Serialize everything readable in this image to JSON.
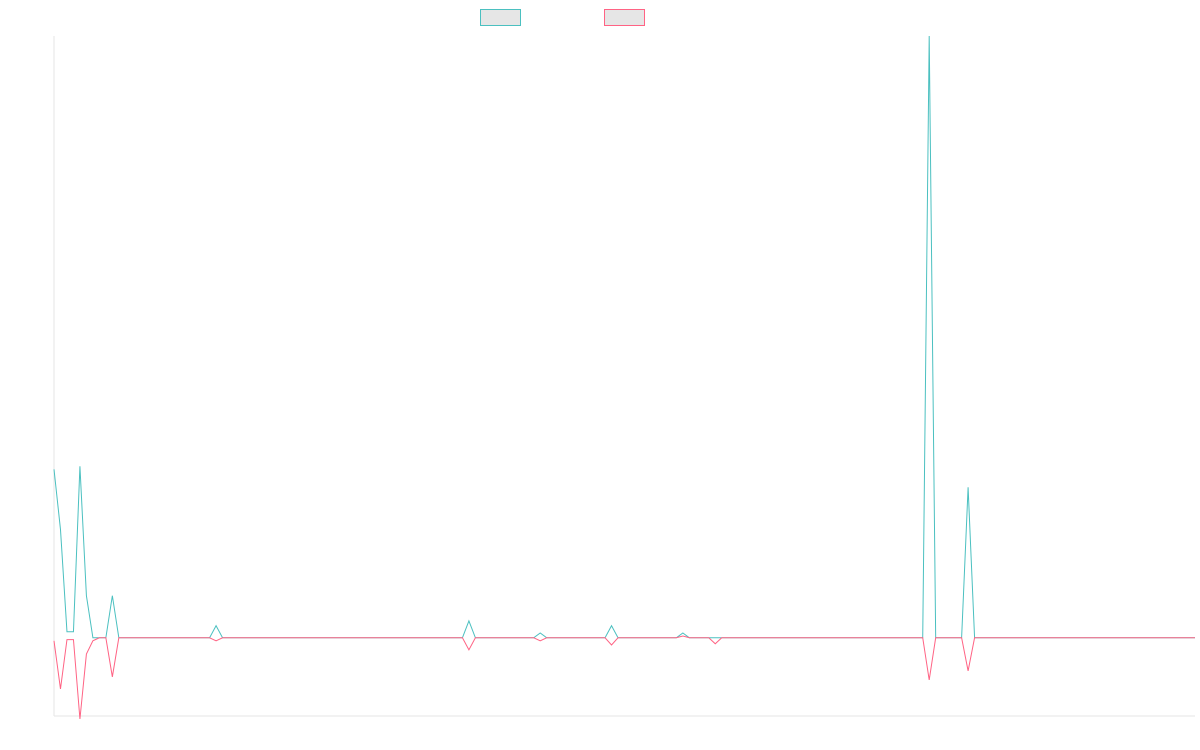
{
  "chart_data": {
    "type": "line",
    "title": "",
    "xlabel": "",
    "ylabel": "",
    "grid": false,
    "legend_position": "top-center",
    "x_count": 177,
    "ylim": [
      -13,
      100
    ],
    "series": [
      {
        "color": "#4bc0c0",
        "points": [
          [
            0,
            28
          ],
          [
            1,
            18
          ],
          [
            2,
            1
          ],
          [
            3,
            1
          ],
          [
            4,
            28.5
          ],
          [
            5,
            7
          ],
          [
            6,
            0
          ],
          [
            7,
            0
          ],
          [
            8,
            0
          ],
          [
            9,
            7
          ],
          [
            10,
            0
          ],
          [
            11,
            0
          ],
          [
            24,
            0
          ],
          [
            25,
            2
          ],
          [
            26,
            0
          ],
          [
            63,
            0
          ],
          [
            64,
            2.8
          ],
          [
            65,
            0
          ],
          [
            74,
            0
          ],
          [
            75,
            0.8
          ],
          [
            76,
            0
          ],
          [
            85,
            0
          ],
          [
            86,
            2
          ],
          [
            87,
            0
          ],
          [
            96,
            0
          ],
          [
            97,
            0.8
          ],
          [
            98,
            0
          ],
          [
            134,
            0
          ],
          [
            135,
            100
          ],
          [
            136,
            0
          ],
          [
            140,
            0
          ],
          [
            141,
            25
          ],
          [
            142,
            0
          ],
          [
            176,
            0
          ]
        ]
      },
      {
        "color": "#ff6384",
        "points": [
          [
            0,
            -0.5
          ],
          [
            1,
            -8.5
          ],
          [
            2,
            -0.3
          ],
          [
            3,
            -0.3
          ],
          [
            4,
            -13.5
          ],
          [
            5,
            -2.7
          ],
          [
            6,
            -0.5
          ],
          [
            7,
            0
          ],
          [
            8,
            0
          ],
          [
            9,
            -6.5
          ],
          [
            10,
            0
          ],
          [
            11,
            0
          ],
          [
            24,
            0
          ],
          [
            25,
            -0.5
          ],
          [
            26,
            0
          ],
          [
            63,
            0
          ],
          [
            64,
            -2
          ],
          [
            65,
            0
          ],
          [
            74,
            0
          ],
          [
            75,
            -0.5
          ],
          [
            76,
            0
          ],
          [
            85,
            0
          ],
          [
            86,
            -1.2
          ],
          [
            87,
            0
          ],
          [
            96,
            0
          ],
          [
            97,
            0.3
          ],
          [
            98,
            0
          ],
          [
            101,
            0
          ],
          [
            102,
            -1
          ],
          [
            103,
            0
          ],
          [
            134,
            0
          ],
          [
            135,
            -7
          ],
          [
            136,
            0
          ],
          [
            140,
            0
          ],
          [
            141,
            -5.5
          ],
          [
            142,
            0
          ],
          [
            176,
            0
          ]
        ]
      }
    ]
  }
}
